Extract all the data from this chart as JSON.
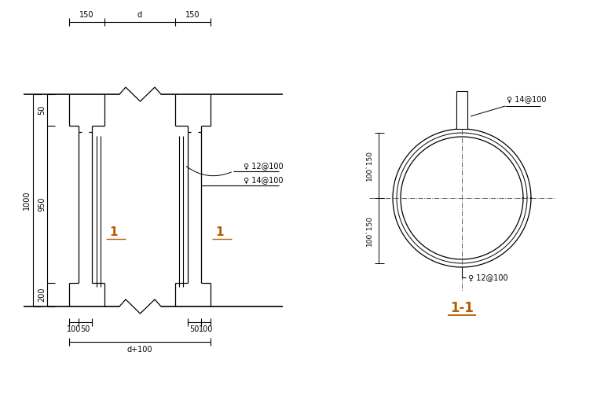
{
  "bg_color": "#ffffff",
  "line_color": "#000000",
  "label_color": "#b85c00",
  "annot_12": "♀ 12@100",
  "annot_14": "♀ 14@100",
  "annot_top_14": "♀ 14@100",
  "annot_bot_12": "♀ 12@100",
  "dim_150": "150",
  "dim_d": "d",
  "dim_1000": "1000",
  "dim_50": "50",
  "dim_950": "950",
  "dim_200": "200",
  "dim_100l": "100",
  "dim_50l": "50",
  "dim_50r": "50",
  "dim_100r": "100",
  "dim_d100": "d+100",
  "label_1": "1",
  "title_11": "1-1",
  "dim_circ_top": "100`150",
  "dim_circ_bot": "100`150"
}
